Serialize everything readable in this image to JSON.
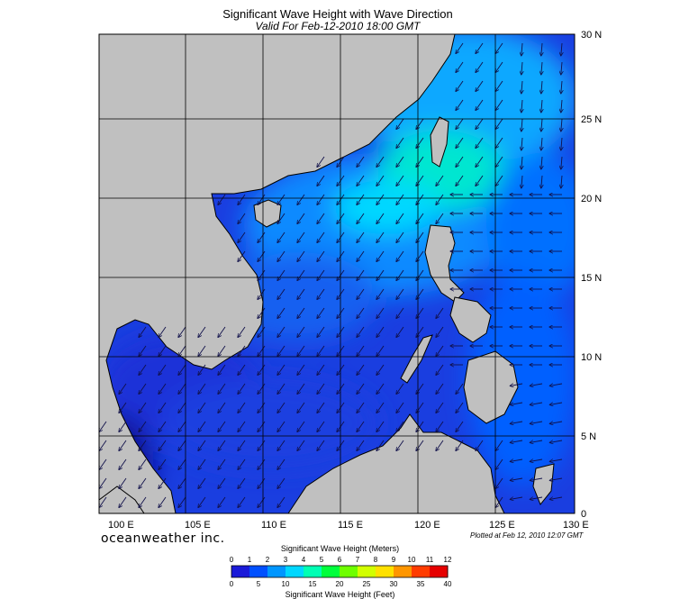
{
  "title": "Significant Wave Height with Wave Direction",
  "subtitle": "Valid For Feb-12-2010 18:00 GMT",
  "brand": "oceanweather inc.",
  "plotted": "Plotted at Feb 12, 2010 12:07 GMT",
  "lon_labels": [
    "100 E",
    "105 E",
    "110 E",
    "115 E",
    "120 E",
    "125 E",
    "130 E"
  ],
  "lat_labels": [
    "30 N",
    "25 N",
    "20 N",
    "15 N",
    "10 N",
    "5 N",
    "0"
  ],
  "scale": {
    "meters_title": "Significant Wave Height (Meters)",
    "feet_title": "Significant Wave Height (Feet)",
    "meters": [
      "0",
      "1",
      "2",
      "3",
      "4",
      "5",
      "6",
      "7",
      "8",
      "9",
      "10",
      "11",
      "12"
    ],
    "feet": [
      "0",
      "5",
      "10",
      "15",
      "20",
      "25",
      "30",
      "35",
      "40"
    ],
    "colors": [
      "#1a1ad8",
      "#0050ff",
      "#0096ff",
      "#00d7ff",
      "#00ffb4",
      "#00ff3c",
      "#6eff00",
      "#d2ff00",
      "#ffe100",
      "#ff9600",
      "#ff3c00",
      "#e60000"
    ]
  },
  "colors": {
    "land": "#c0c0c0",
    "ocean_low": "#1a1ad8",
    "ocean_mid": "#0050ff",
    "ocean_high": "#00c8ff",
    "ocean_peak": "#00ffa0",
    "arrow": "#10104a",
    "grid": "#000000"
  }
}
